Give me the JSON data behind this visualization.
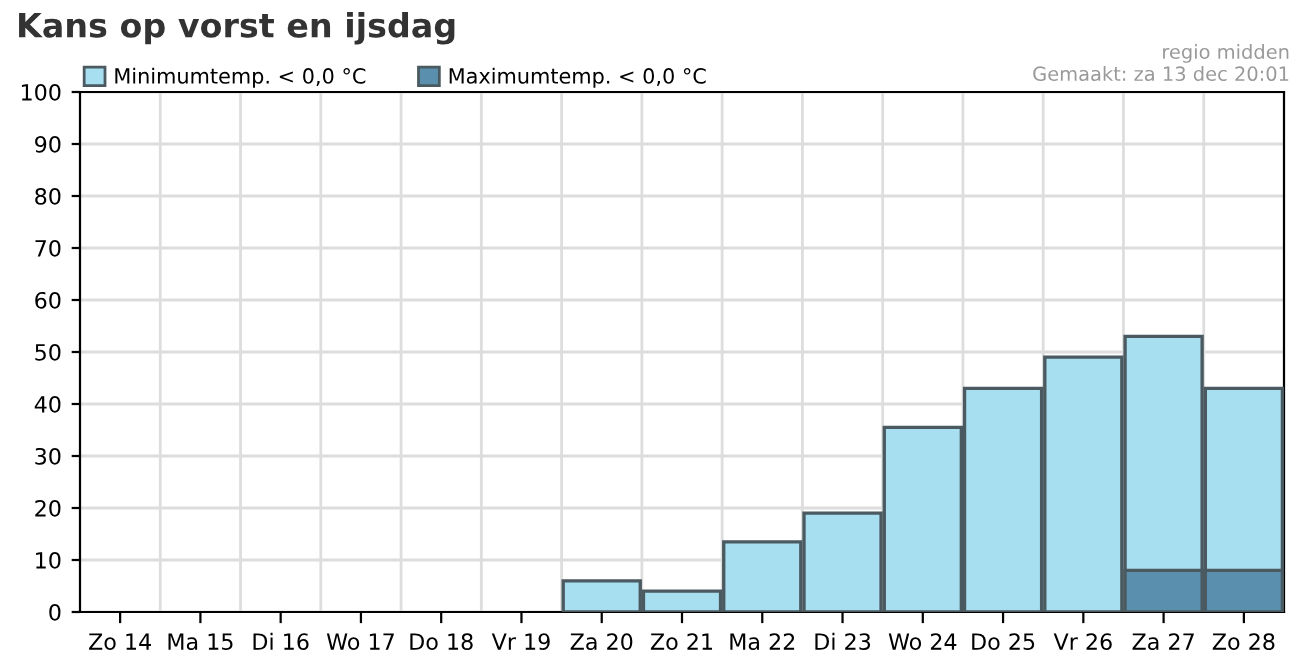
{
  "chart_data": {
    "type": "bar",
    "title": "Kans op vorst en ijsdag",
    "categories": [
      "Zo 14",
      "Ma 15",
      "Di 16",
      "Wo 17",
      "Do 18",
      "Vr 19",
      "Za 20",
      "Zo 21",
      "Ma 22",
      "Di 23",
      "Wo 24",
      "Do 25",
      "Vr 26",
      "Za 27",
      "Zo 28"
    ],
    "series": [
      {
        "name": "Minimumtemp. < 0,0 °C",
        "color": "#a8dff0",
        "values": [
          null,
          null,
          null,
          null,
          null,
          null,
          6,
          4,
          13.5,
          19,
          35.5,
          43,
          49,
          53,
          43
        ]
      },
      {
        "name": "Maximumtemp. < 0,0 °C",
        "color": "#5a8fae",
        "values": [
          null,
          null,
          null,
          null,
          null,
          null,
          null,
          null,
          null,
          null,
          null,
          null,
          null,
          8,
          8
        ]
      }
    ],
    "ylim": [
      0,
      100
    ],
    "yticks": [
      0,
      10,
      20,
      30,
      40,
      50,
      60,
      70,
      80,
      90,
      100
    ],
    "grid": true,
    "legend": "top left",
    "annotations": [
      "regio midden",
      "Gemaakt: za 13 dec 20:01"
    ]
  }
}
